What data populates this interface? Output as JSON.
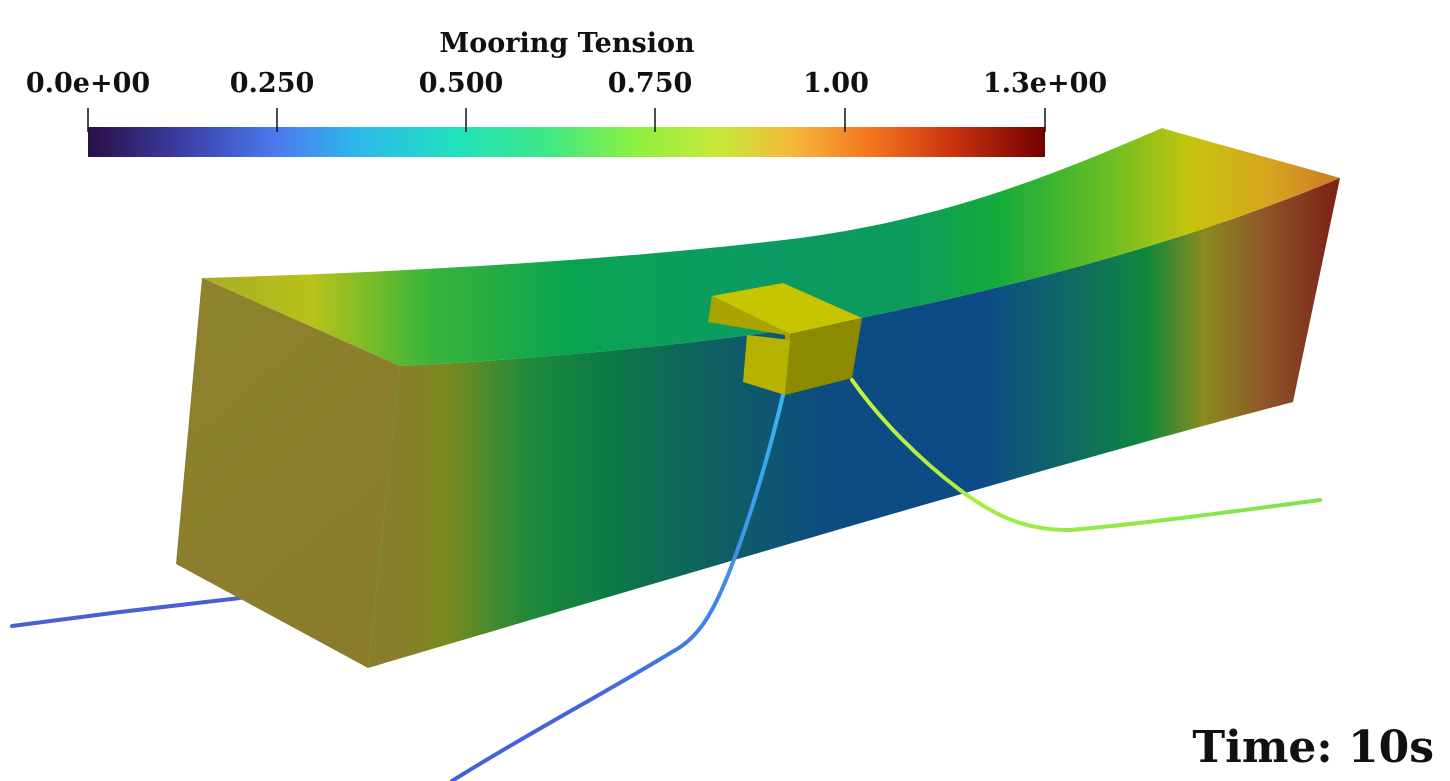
{
  "scalar_bar": {
    "title": "Mooring Tension",
    "tick_labels": [
      "0.0e+00",
      "0.250",
      "0.500",
      "0.750",
      "1.00",
      "1.3e+00"
    ],
    "range": [
      0,
      1.3
    ],
    "colormap": "turbo",
    "colors": [
      "#2b0f45",
      "#4a6ee8",
      "#2bd0d3",
      "#39e07a",
      "#a5e83c",
      "#f7b53a",
      "#e8541f",
      "#b01e0a",
      "#730000"
    ]
  },
  "scene": {
    "objects": [
      "pontoon",
      "mooring-line-blue-left",
      "mooring-line-blue-front",
      "mooring-line-green-right",
      "fairlead-box"
    ],
    "pontoon_colors": {
      "end_face": "#8d7f2f",
      "top_left": "#9ab42a",
      "top_mid": "#0aa34e",
      "side_mid": "#0d4d8a",
      "side_right": "#7e2a19"
    },
    "line_colors": {
      "left": "#4561d4",
      "front_upper": "#3aa6e8",
      "front_lower": "#4561d4",
      "right": "#8fe84a"
    }
  },
  "time": {
    "text": "Time: 10s"
  }
}
